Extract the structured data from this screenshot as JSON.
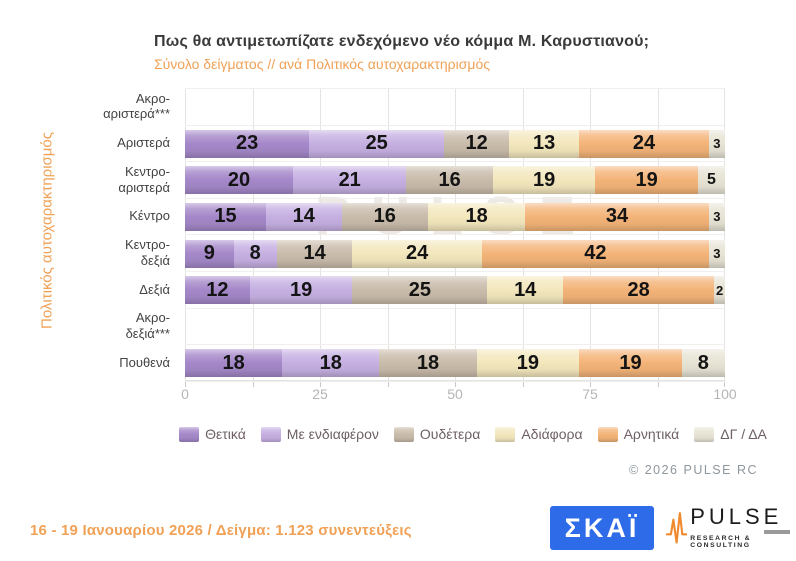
{
  "header": {
    "title": "Πως θα αντιμετωπίζατε ενδεχόμενο νέο κόμμα Μ. Καρυστιανού;",
    "subtitle": "Σύνολο δείγματος // ανά Πολιτικός αυτοχαρακτηρισμός"
  },
  "chart_data": {
    "type": "bar",
    "orientation": "horizontal",
    "stacked": true,
    "xlim": [
      0,
      100
    ],
    "x_ticks": [
      0,
      25,
      50,
      75,
      100
    ],
    "x_minor_tick_step": 12.5,
    "grid": "vertical-light-gray",
    "axis_title_y": "Πολιτικός αυτοχαρακτηρισμός",
    "categories": [
      "Ακρο-αριστερά***",
      "Αριστερά",
      "Κεντρο-αριστερά",
      "Κέντρο",
      "Κεντρο-δεξιά",
      "Δεξιά",
      "Ακρο-δεξιά***",
      "Πουθενά"
    ],
    "category_lines": [
      [
        "Ακρο-",
        "αριστερά***"
      ],
      [
        "Αριστερά"
      ],
      [
        "Κεντρο-",
        "αριστερά"
      ],
      [
        "Κέντρο"
      ],
      [
        "Κεντρο-",
        "δεξιά"
      ],
      [
        "Δεξιά"
      ],
      [
        "Ακρο-",
        "δεξιά***"
      ],
      [
        "Πουθενά"
      ]
    ],
    "series": [
      {
        "name": "Θετικά",
        "color": "#a588c9",
        "values": [
          null,
          23,
          20,
          15,
          9,
          12,
          null,
          18
        ]
      },
      {
        "name": "Με ενδιαφέρον",
        "color": "#c6b0e2",
        "values": [
          null,
          25,
          21,
          14,
          8,
          19,
          null,
          18
        ]
      },
      {
        "name": "Ουδέτερα",
        "color": "#c9bcab",
        "values": [
          null,
          12,
          16,
          16,
          14,
          25,
          null,
          18
        ]
      },
      {
        "name": "Αδιάφορα",
        "color": "#f3e7bd",
        "values": [
          null,
          13,
          19,
          18,
          24,
          14,
          null,
          19
        ]
      },
      {
        "name": "Αρνητικά",
        "color": "#f4b479",
        "values": [
          null,
          24,
          19,
          34,
          42,
          28,
          null,
          19
        ]
      },
      {
        "name": "ΔΓ / ΔΑ",
        "color": "#e7e3d5",
        "values": [
          null,
          3,
          5,
          3,
          3,
          2,
          null,
          8
        ]
      }
    ],
    "legend_position": "bottom",
    "watermark": "PULSE",
    "watermark_sub": "RESEARCH & CONSULTING"
  },
  "copyright": "©  2026  PULSE RC",
  "footer": {
    "fieldwork": "16 - 19 Ιανουαρίου 2026  /  Δείγμα:  1.123 συνεντεύξεις",
    "skai_logo_text": "ΣΚΑΪ",
    "pulse_logo_text": "PULSE",
    "pulse_logo_sub": "RESEARCH & CONSULTING"
  },
  "colors": {
    "accent_orange": "#f0a156",
    "title_text": "#3a3a3a",
    "tick_text": "#b5b5b5",
    "legend_text": "#6e6066",
    "copyright_text": "#8d979e",
    "skai_blue": "#2e6be9",
    "pulse_orange": "#f08a2e"
  }
}
